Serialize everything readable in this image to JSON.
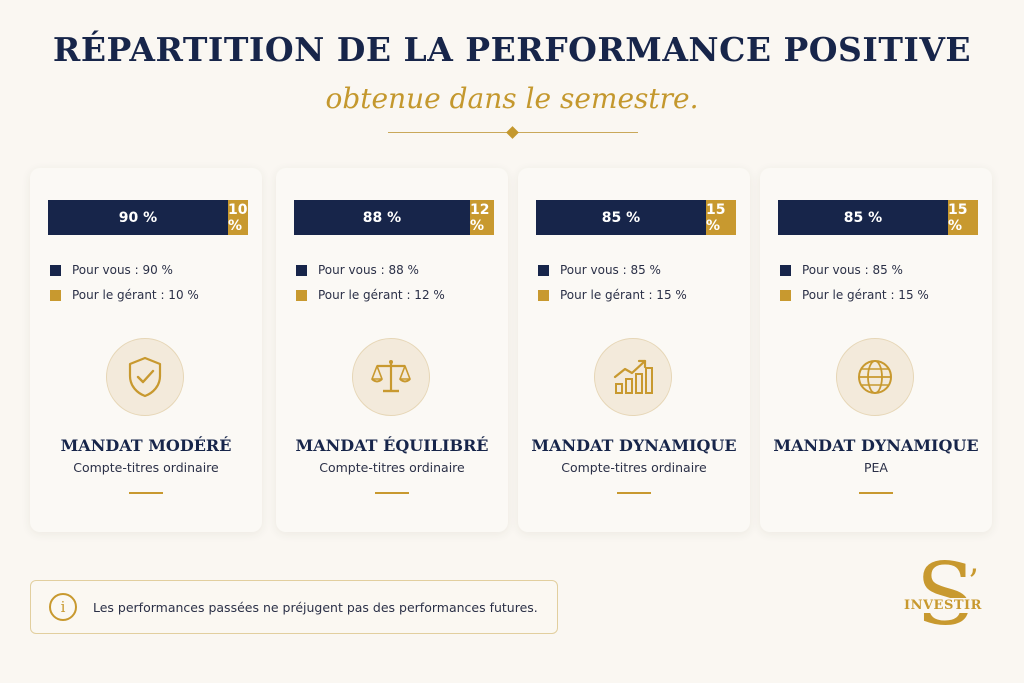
{
  "header": {
    "title": "RÉPARTITION DE LA PERFORMANCE POSITIVE",
    "subtitle": "obtenue dans le semestre."
  },
  "colors": {
    "navy": "#17254a",
    "gold": "#c8992f"
  },
  "chart_data": {
    "type": "bar",
    "stacked": true,
    "normalized": true,
    "categories": [
      "MANDAT MODÉRÉ",
      "MANDAT ÉQUILIBRÉ",
      "MANDAT DYNAMIQUE",
      "MANDAT DYNAMIQUE"
    ],
    "series": [
      {
        "values": [
          90,
          88,
          85,
          85
        ]
      },
      {
        "values": [
          10,
          12,
          15,
          15
        ]
      }
    ],
    "ylim": [
      0,
      100
    ]
  },
  "cards": [
    {
      "title": "MANDAT MODÉRÉ",
      "subtitle": "Compte-titres ordinaire",
      "you": 90,
      "manager": 10,
      "you_label": "90 %",
      "manager_label": "10 %",
      "legend_you": "Pour vous : 90 %",
      "legend_manager": "Pour le gérant : 10 %",
      "icon": "shield-check-icon"
    },
    {
      "title": "MANDAT ÉQUILIBRÉ",
      "subtitle": "Compte-titres ordinaire",
      "you": 88,
      "manager": 12,
      "you_label": "88 %",
      "manager_label": "12 %",
      "legend_you": "Pour vous : 88 %",
      "legend_manager": "Pour le gérant : 12 %",
      "icon": "scales-icon"
    },
    {
      "title": "MANDAT DYNAMIQUE",
      "subtitle": "Compte-titres ordinaire",
      "you": 85,
      "manager": 15,
      "you_label": "85 %",
      "manager_label": "15 %",
      "legend_you": "Pour vous : 85 %",
      "legend_manager": "Pour le gérant : 15 %",
      "icon": "growth-chart-icon"
    },
    {
      "title": "MANDAT DYNAMIQUE",
      "subtitle": "PEA",
      "you": 85,
      "manager": 15,
      "you_label": "85 %",
      "manager_label": "15 %",
      "legend_you": "Pour vous : 85 %",
      "legend_manager": "Pour le gérant : 15 %",
      "icon": "globe-icon"
    }
  ],
  "note": {
    "icon": "info-icon",
    "symbol": "i",
    "text": "Les performances passées ne préjugent pas des performances futures."
  },
  "logo": {
    "letter": "S",
    "apostrophe": "’",
    "word": "INVESTIR"
  }
}
